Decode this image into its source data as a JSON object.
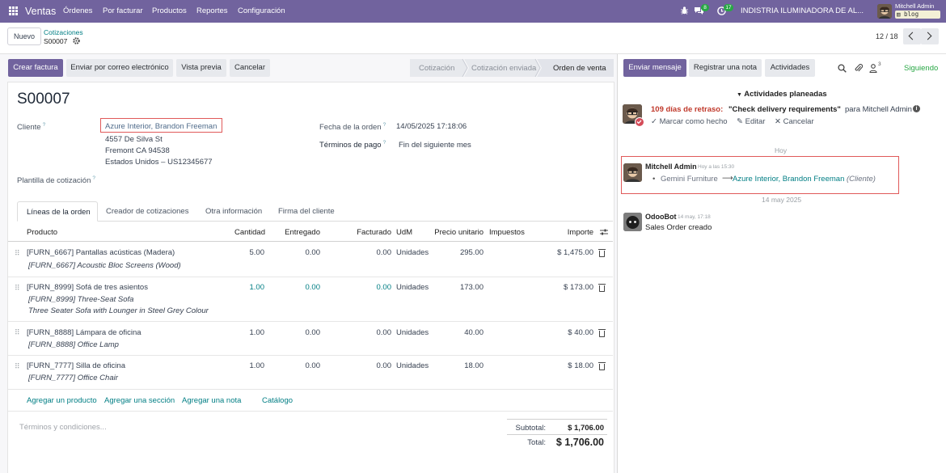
{
  "topnav": {
    "app_name": "Ventas",
    "menu": [
      "Órdenes",
      "Por facturar",
      "Productos",
      "Reportes",
      "Configuración"
    ],
    "messages_count": "8",
    "activities_count": "17",
    "company": "INDISTRIA ILUMINADORA DE AL...",
    "user_name": "Mitchell Admin",
    "user_db": "blog"
  },
  "control": {
    "new_label": "Nuevo",
    "breadcrumb_parent": "Cotizaciones",
    "breadcrumb_current": "S00007",
    "pager": "12 / 18"
  },
  "actions": [
    "Crear factura",
    "Enviar por correo electrónico",
    "Vista previa",
    "Cancelar"
  ],
  "status_steps": [
    "Cotización",
    "Cotización enviada",
    "Orden de venta"
  ],
  "status_current": "Orden de venta",
  "form": {
    "title": "S00007",
    "customer_label": "Cliente",
    "customer_help": "?",
    "customer_name": "Azure Interior, Brandon Freeman",
    "address_line1": "4557 De Silva St",
    "address_line2": "Fremont CA 94538",
    "address_line3": "Estados Unidos – US12345677",
    "template_label": "Plantilla de cotización",
    "template_help": "?",
    "order_date_label": "Fecha de la orden",
    "order_date_help": "?",
    "order_date": "14/05/2025 17:18:06",
    "payment_terms_label": "Términos de pago",
    "payment_terms_help": "?",
    "payment_terms": "Fin del siguiente mes"
  },
  "tabs": [
    "Líneas de la orden",
    "Creador de cotizaciones",
    "Otra información",
    "Firma del cliente"
  ],
  "table": {
    "headers": [
      "Producto",
      "Cantidad",
      "Entregado",
      "Facturado",
      "UdM",
      "Precio unitario",
      "Impuestos",
      "Importe"
    ],
    "rows": [
      {
        "product": "[FURN_6667] Pantallas acústicas (Madera)",
        "desc1": "[FURN_6667] Acoustic Bloc Screens (Wood)",
        "desc2": "",
        "qty": "5.00",
        "delivered": "0.00",
        "invoiced": "0.00",
        "uom": "Unidades",
        "price": "295.00",
        "amount": "$ 1,475.00"
      },
      {
        "product": "[FURN_8999] Sofá de tres asientos",
        "desc1": "[FURN_8999] Three-Seat Sofa",
        "desc2": "Three Seater Sofa with Lounger in Steel Grey Colour",
        "qty": "1.00",
        "delivered": "0.00",
        "invoiced": "0.00",
        "uom": "Unidades",
        "price": "173.00",
        "amount": "$ 173.00"
      },
      {
        "product": "[FURN_8888] Lámpara de oficina",
        "desc1": "[FURN_8888] Office Lamp",
        "desc2": "",
        "qty": "1.00",
        "delivered": "0.00",
        "invoiced": "0.00",
        "uom": "Unidades",
        "price": "40.00",
        "amount": "$ 40.00"
      },
      {
        "product": "[FURN_7777] Silla de oficina",
        "desc1": "[FURN_7777] Office Chair",
        "desc2": "",
        "qty": "1.00",
        "delivered": "0.00",
        "invoiced": "0.00",
        "uom": "Unidades",
        "price": "18.00",
        "amount": "$ 18.00"
      }
    ],
    "add_links": [
      "Agregar un producto",
      "Agregar una sección",
      "Agregar una nota",
      "Catálogo"
    ]
  },
  "footer": {
    "terms_placeholder": "Términos y condiciones...",
    "subtotal_label": "Subtotal:",
    "subtotal": "$ 1,706.00",
    "total_label": "Total:",
    "total": "$ 1,706.00"
  },
  "chatter": {
    "send_message": "Enviar mensaje",
    "log_note": "Registrar una nota",
    "activities": "Actividades",
    "followers_count": "3",
    "following": "Siguiendo",
    "planned_title": "Actividades planeadas",
    "activity_late": "109 días de retraso:",
    "activity_summary": "\"Check delivery requirements\"",
    "activity_for": "para Mitchell Admin",
    "mark_done": "Marcar como hecho",
    "edit": "Editar",
    "cancel": "Cancelar",
    "date_today": "Hoy",
    "msg1_author": "Mitchell Admin",
    "msg1_time": "Hoy a las 15:30",
    "msg1_old": "Gemini Furniture",
    "msg1_new": "Azure Interior, Brandon Freeman",
    "msg1_field": "(Cliente)",
    "date_2": "14 may 2025",
    "msg2_author": "OdooBot",
    "msg2_time": "14 may, 17:18",
    "msg2_body": "Sales Order creado"
  },
  "colors": {
    "nav": "#71639e",
    "link": "#017e84",
    "danger": "#d44c59",
    "late": "#c0392b",
    "success": "#28a745"
  }
}
